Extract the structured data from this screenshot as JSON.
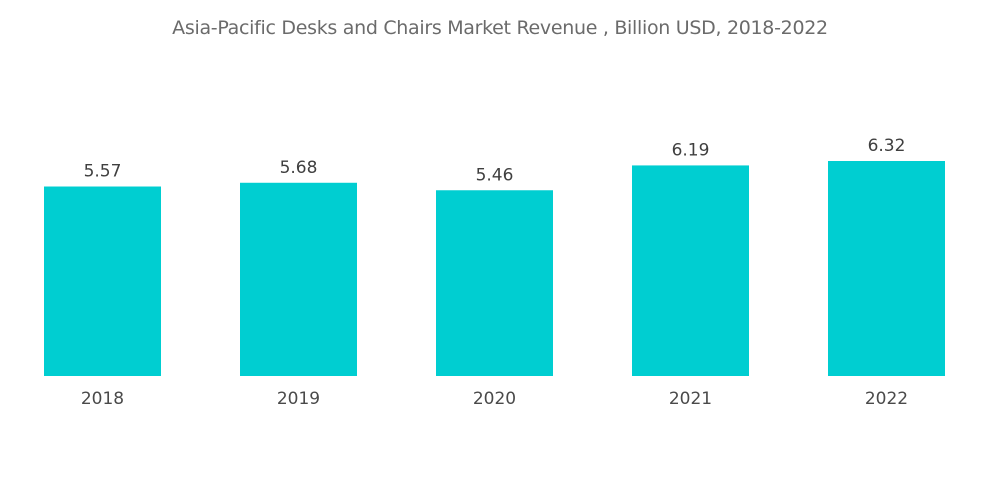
{
  "chart_data": {
    "type": "bar",
    "title": "Asia-Pacific Desks and Chairs Market Revenue , Billion USD,  2018-2022",
    "categories": [
      "2018",
      "2019",
      "2020",
      "2021",
      "2022"
    ],
    "values": [
      5.57,
      5.68,
      5.46,
      6.19,
      6.32
    ],
    "data_labels": [
      "5.57",
      "5.68",
      "5.46",
      "6.19",
      "6.32"
    ],
    "xlabel": "",
    "ylabel": "",
    "ylim": [
      0,
      6.32
    ],
    "grid": false,
    "legend": "none",
    "bar_color": "#00CED1"
  }
}
